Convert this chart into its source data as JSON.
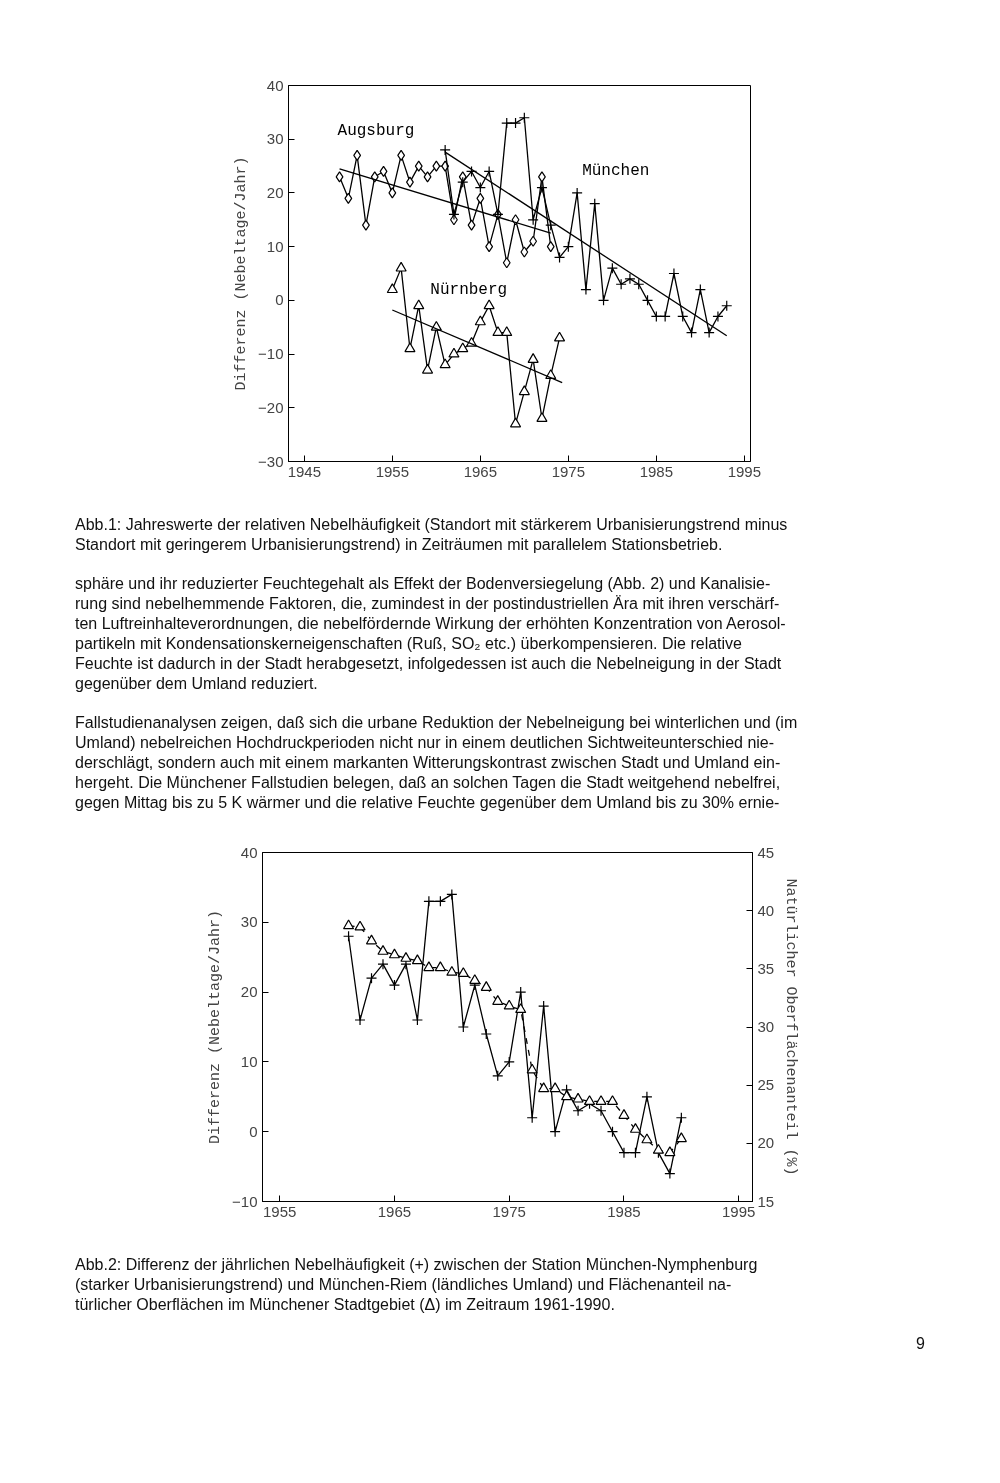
{
  "chart_data": [
    {
      "type": "line",
      "ylabel": "Differenz (Nebeltage/Jahr)",
      "xlim": [
        1943.2,
        1995.7
      ],
      "xticks": [
        1945,
        1955,
        1965,
        1975,
        1985,
        1995
      ],
      "ylim": [
        -30,
        40
      ],
      "yticks": [
        -30,
        -20,
        -10,
        0,
        10,
        20,
        30,
        40
      ],
      "grid": false,
      "series": [
        {
          "name": "Augsburg",
          "color": "#000000",
          "marker": "diamond",
          "x": [
            1949,
            1950,
            1951,
            1952,
            1953,
            1954,
            1955,
            1956,
            1957,
            1958,
            1959,
            1960,
            1961,
            1962,
            1963,
            1964,
            1965,
            1966,
            1967,
            1968,
            1969,
            1970,
            1971,
            1972,
            1973
          ],
          "values": [
            23,
            19,
            27,
            14,
            23,
            24,
            20,
            27,
            22,
            25,
            23,
            25,
            25,
            15,
            23,
            14,
            19,
            10,
            16,
            7,
            15,
            9,
            11,
            23,
            10
          ]
        },
        {
          "color": "#000000",
          "marker": "none",
          "x": [
            1949,
            1973
          ],
          "values": [
            24.5,
            12.5
          ]
        },
        {
          "name": "München",
          "color": "#000000",
          "marker": "cross",
          "x": [
            1961,
            1962,
            1963,
            1964,
            1965,
            1966,
            1967,
            1968,
            1969,
            1970,
            1971,
            1972,
            1973,
            1974,
            1975,
            1976,
            1977,
            1978,
            1979,
            1980,
            1981,
            1982,
            1983,
            1984,
            1985,
            1986,
            1987,
            1988,
            1989,
            1990,
            1991,
            1992,
            1993
          ],
          "values": [
            28,
            16,
            22,
            24,
            21,
            24,
            16,
            33,
            33,
            34,
            15,
            21,
            14,
            8,
            10,
            20,
            2,
            18,
            0,
            6,
            3,
            4,
            3,
            0,
            -3,
            -3,
            5,
            -3,
            -6,
            2,
            -6,
            -3,
            -1
          ]
        },
        {
          "color": "#000000",
          "marker": "none",
          "x": [
            1961,
            1993
          ],
          "values": [
            27.6,
            -6.6
          ]
        },
        {
          "name": "Nürnberg",
          "color": "#000000",
          "marker": "triangle",
          "x": [
            1955,
            1956,
            1957,
            1958,
            1959,
            1960,
            1961,
            1962,
            1963,
            1964,
            1965,
            1966,
            1967,
            1968,
            1969,
            1970,
            1971,
            1972,
            1973,
            1974
          ],
          "values": [
            2,
            6,
            -9,
            -1,
            -13,
            -5,
            -12,
            -10,
            -9,
            -8,
            -4,
            -1,
            -6,
            -6,
            -23,
            -17,
            -11,
            -22,
            -14,
            -7
          ]
        },
        {
          "color": "#000000",
          "marker": "none",
          "x": [
            1955,
            1974.3
          ],
          "values": [
            -1.8,
            -15.3
          ]
        }
      ],
      "annotations": [
        "Abb.1: Jahreswerte der relativen Nebelhäufigkeit (Standort mit stärkerem Urbanisierungstrend minus\nStandort mit geringerem Urbanisierungstrend) in Zeiträumen mit parallelem Stationsbetrieb.",
        "sphäre und ihr reduzierter Feuchtegehalt als Effekt der Bodenversiegelung (Abb. 2) und Kanalisie-\nrung sind nebelhemmende Faktoren, die, zumindest in der postindustriellen Ära mit ihren verschärf-\nten Luftreinhalteverordnungen, die nebelfördernde Wirkung der erhöhten Konzentration von Aerosol-\npartikeln mit Kondensationskerneigenschaften (Ruß, SO₂ etc.) überkompensieren. Die relative\nFeuchte ist dadurch in der Stadt herabgesetzt, infolgedessen ist auch die Nebelneigung in der Stadt\ngegenüber dem Umland reduziert.",
        "Fallstudienanalysen zeigen, daß sich die urbane Reduktion der Nebelneigung bei winterlichen und (im\nUmland) nebelreichen Hochdruckperioden nicht nur in einem deutlichen Sichtweiteunterschied nie-\nderschlägt, sondern auch mit einem markanten Witterungskontrast zwischen Stadt und Umland ein-\nhergeht. Die Münchener Fallstudien belegen, daß an solchen Tagen die Stadt weitgehend nebelfrei,\ngegen Mittag bis zu 5 K wärmer und die relative Feuchte gegenüber dem Umland bis zu 30% ernie-"
      ]
    },
    {
      "type": "line",
      "ylabel": "Differenz (Nebeltage/Jahr)",
      "y2label": "Natürlicher Oberflächenanteil (%)",
      "xlim": [
        1953.5,
        1996.2
      ],
      "xticks": [
        1955,
        1965,
        1975,
        1985,
        1995
      ],
      "ylim": [
        -10,
        40
      ],
      "yticks": [
        -10,
        0,
        10,
        20,
        30,
        40
      ],
      "y2lim": [
        15,
        45
      ],
      "y2ticks": [
        15,
        20,
        25,
        30,
        35,
        40,
        45
      ],
      "grid": false,
      "series": [
        {
          "color": "#000000",
          "marker": "cross",
          "line_style": "solid",
          "x": [
            1961,
            1962,
            1963,
            1964,
            1965,
            1966,
            1967,
            1968,
            1969,
            1970,
            1971,
            1972,
            1973,
            1974,
            1975,
            1976,
            1977,
            1978,
            1979,
            1980,
            1981,
            1982,
            1983,
            1984,
            1985,
            1986,
            1987,
            1988,
            1989,
            1990
          ],
          "values": [
            28,
            16,
            22,
            24,
            21,
            24,
            16,
            33,
            33,
            34,
            15,
            21,
            14,
            8,
            10,
            20,
            2,
            18,
            0,
            6,
            3,
            4,
            3,
            0,
            -3,
            -3,
            5,
            -3,
            -6,
            2
          ]
        },
        {
          "color": "#000000",
          "marker": "triangle",
          "line_style": "dashed",
          "axis": "y2",
          "x": [
            1961,
            1962,
            1963,
            1964,
            1965,
            1966,
            1967,
            1968,
            1969,
            1970,
            1971,
            1972,
            1973,
            1974,
            1975,
            1976,
            1977,
            1978,
            1979,
            1980,
            1981,
            1982,
            1983,
            1984,
            1985,
            1986,
            1987,
            1988,
            1989,
            1990
          ],
          "values": [
            38.7,
            38.6,
            37.4,
            36.5,
            36.2,
            35.9,
            35.7,
            35.1,
            35.1,
            34.7,
            34.6,
            34.0,
            33.4,
            32.2,
            31.8,
            31.5,
            26.3,
            24.7,
            24.7,
            24.0,
            23.8,
            23.6,
            23.6,
            23.6,
            22.4,
            21.2,
            20.3,
            19.4,
            19.2,
            20.4
          ]
        }
      ],
      "annotations": [
        "Abb.2: Differenz der jährlichen Nebelhäufigkeit (+) zwischen der Station München-Nymphenburg\n(starker Urbanisierungstrend) und München-Riem (ländliches Umland) und Flächenanteil na-\ntürlicher Oberflächen im Münchener Stadtgebiet (Δ) im Zeitraum 1961-1990.",
        "9"
      ]
    }
  ]
}
